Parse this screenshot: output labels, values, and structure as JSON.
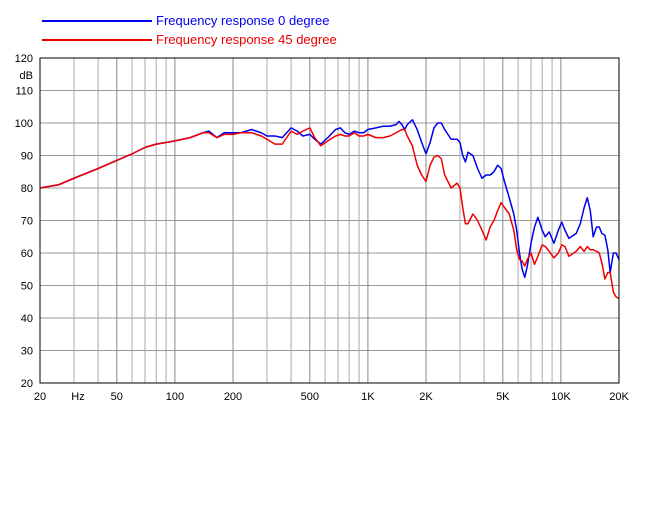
{
  "chart_data": {
    "type": "line",
    "title": "",
    "xlabel": "Hz",
    "ylabel": "dB",
    "x_scale": "log",
    "xlim": [
      20,
      20000
    ],
    "ylim": [
      20,
      120
    ],
    "grid": true,
    "legend_position": "top-left",
    "x_ticks": [
      {
        "value": 20,
        "label": "20"
      },
      {
        "value": 50,
        "label": "50"
      },
      {
        "value": 100,
        "label": "100"
      },
      {
        "value": 200,
        "label": "200"
      },
      {
        "value": 500,
        "label": "500"
      },
      {
        "value": 1000,
        "label": "1K"
      },
      {
        "value": 2000,
        "label": "2K"
      },
      {
        "value": 5000,
        "label": "5K"
      },
      {
        "value": 10000,
        "label": "10K"
      },
      {
        "value": 20000,
        "label": "20K"
      }
    ],
    "y_ticks": [
      120,
      110,
      100,
      90,
      80,
      70,
      60,
      50,
      40,
      30,
      20
    ],
    "series": [
      {
        "name": "Frequency response 0 degree",
        "color": "#0000ee",
        "points": [
          [
            20,
            80
          ],
          [
            25,
            81
          ],
          [
            30,
            83
          ],
          [
            40,
            86
          ],
          [
            50,
            88.5
          ],
          [
            60,
            90.5
          ],
          [
            70,
            92.5
          ],
          [
            80,
            93.5
          ],
          [
            90,
            94
          ],
          [
            100,
            94.5
          ],
          [
            120,
            95.5
          ],
          [
            140,
            97
          ],
          [
            150,
            97.5
          ],
          [
            165,
            95.5
          ],
          [
            180,
            97
          ],
          [
            200,
            97
          ],
          [
            220,
            97
          ],
          [
            250,
            98
          ],
          [
            280,
            97
          ],
          [
            300,
            96
          ],
          [
            330,
            96
          ],
          [
            360,
            95.5
          ],
          [
            400,
            98.5
          ],
          [
            430,
            97.5
          ],
          [
            460,
            96
          ],
          [
            500,
            96.5
          ],
          [
            530,
            95
          ],
          [
            570,
            93.5
          ],
          [
            620,
            95.5
          ],
          [
            680,
            98
          ],
          [
            720,
            98.5
          ],
          [
            760,
            97
          ],
          [
            800,
            96.5
          ],
          [
            850,
            97.5
          ],
          [
            900,
            97
          ],
          [
            950,
            97
          ],
          [
            1000,
            98
          ],
          [
            1100,
            98.5
          ],
          [
            1200,
            99
          ],
          [
            1300,
            99
          ],
          [
            1400,
            99.5
          ],
          [
            1450,
            100.5
          ],
          [
            1500,
            99.5
          ],
          [
            1550,
            98
          ],
          [
            1600,
            99.5
          ],
          [
            1700,
            101
          ],
          [
            1800,
            98
          ],
          [
            1900,
            94
          ],
          [
            2000,
            90.5
          ],
          [
            2100,
            94
          ],
          [
            2200,
            98.5
          ],
          [
            2300,
            100
          ],
          [
            2400,
            100
          ],
          [
            2500,
            98
          ],
          [
            2700,
            95
          ],
          [
            2900,
            95
          ],
          [
            3000,
            94
          ],
          [
            3100,
            90
          ],
          [
            3200,
            88
          ],
          [
            3300,
            91
          ],
          [
            3500,
            90
          ],
          [
            3700,
            86
          ],
          [
            3900,
            83
          ],
          [
            4100,
            84
          ],
          [
            4300,
            84
          ],
          [
            4500,
            85
          ],
          [
            4700,
            87
          ],
          [
            4900,
            86
          ],
          [
            5100,
            82
          ],
          [
            5400,
            77
          ],
          [
            5700,
            72
          ],
          [
            5900,
            67
          ],
          [
            6100,
            60
          ],
          [
            6300,
            55
          ],
          [
            6500,
            52.5
          ],
          [
            6700,
            56
          ],
          [
            7000,
            63
          ],
          [
            7300,
            68
          ],
          [
            7600,
            71
          ],
          [
            8000,
            67
          ],
          [
            8300,
            65
          ],
          [
            8700,
            66.5
          ],
          [
            9200,
            63
          ],
          [
            9700,
            67
          ],
          [
            10100,
            69.5
          ],
          [
            10500,
            67
          ],
          [
            11000,
            64.5
          ],
          [
            12000,
            66
          ],
          [
            12600,
            69
          ],
          [
            13200,
            74
          ],
          [
            13700,
            77
          ],
          [
            14200,
            73
          ],
          [
            14700,
            65
          ],
          [
            15300,
            68
          ],
          [
            15800,
            68
          ],
          [
            16300,
            66
          ],
          [
            16900,
            65.5
          ],
          [
            17500,
            61
          ],
          [
            18000,
            54
          ],
          [
            18700,
            60
          ],
          [
            19300,
            60
          ],
          [
            20000,
            58
          ]
        ]
      },
      {
        "name": "Frequency response 45 degree",
        "color": "#ee0000",
        "points": [
          [
            20,
            80
          ],
          [
            25,
            81
          ],
          [
            30,
            83
          ],
          [
            40,
            86
          ],
          [
            50,
            88.5
          ],
          [
            60,
            90.5
          ],
          [
            70,
            92.5
          ],
          [
            80,
            93.5
          ],
          [
            90,
            94
          ],
          [
            100,
            94.5
          ],
          [
            120,
            95.5
          ],
          [
            140,
            97
          ],
          [
            150,
            97
          ],
          [
            165,
            95.5
          ],
          [
            180,
            96.5
          ],
          [
            200,
            96.5
          ],
          [
            220,
            97
          ],
          [
            250,
            97
          ],
          [
            280,
            96
          ],
          [
            300,
            95
          ],
          [
            330,
            93.5
          ],
          [
            360,
            93.5
          ],
          [
            400,
            97.5
          ],
          [
            430,
            96.5
          ],
          [
            460,
            97.5
          ],
          [
            500,
            98.5
          ],
          [
            530,
            95.5
          ],
          [
            570,
            93
          ],
          [
            620,
            94.5
          ],
          [
            680,
            96
          ],
          [
            720,
            96.5
          ],
          [
            760,
            96
          ],
          [
            800,
            96
          ],
          [
            850,
            97
          ],
          [
            900,
            96
          ],
          [
            950,
            96
          ],
          [
            1000,
            96.5
          ],
          [
            1100,
            95.5
          ],
          [
            1200,
            95.5
          ],
          [
            1300,
            96
          ],
          [
            1400,
            97
          ],
          [
            1450,
            97.5
          ],
          [
            1500,
            98
          ],
          [
            1550,
            98
          ],
          [
            1600,
            96
          ],
          [
            1700,
            93
          ],
          [
            1800,
            87
          ],
          [
            1900,
            84
          ],
          [
            2000,
            82
          ],
          [
            2100,
            87
          ],
          [
            2200,
            89.5
          ],
          [
            2300,
            90
          ],
          [
            2400,
            89
          ],
          [
            2500,
            84
          ],
          [
            2700,
            80
          ],
          [
            2900,
            81.5
          ],
          [
            3000,
            80
          ],
          [
            3100,
            74
          ],
          [
            3200,
            69
          ],
          [
            3300,
            69
          ],
          [
            3500,
            72
          ],
          [
            3700,
            70
          ],
          [
            3900,
            67
          ],
          [
            4100,
            64
          ],
          [
            4300,
            68
          ],
          [
            4500,
            70
          ],
          [
            4700,
            73
          ],
          [
            4900,
            75.5
          ],
          [
            5100,
            74
          ],
          [
            5400,
            72
          ],
          [
            5700,
            67
          ],
          [
            5900,
            61
          ],
          [
            6100,
            58
          ],
          [
            6300,
            57.5
          ],
          [
            6500,
            56
          ],
          [
            6700,
            58
          ],
          [
            7000,
            60
          ],
          [
            7300,
            56.5
          ],
          [
            7600,
            59
          ],
          [
            8000,
            62.5
          ],
          [
            8300,
            62
          ],
          [
            8700,
            60.5
          ],
          [
            9200,
            58.5
          ],
          [
            9700,
            60
          ],
          [
            10100,
            62.5
          ],
          [
            10500,
            62
          ],
          [
            11000,
            59
          ],
          [
            12000,
            60.5
          ],
          [
            12600,
            62
          ],
          [
            13200,
            60.5
          ],
          [
            13700,
            62
          ],
          [
            14200,
            61
          ],
          [
            14700,
            61
          ],
          [
            15300,
            60.5
          ],
          [
            15800,
            60
          ],
          [
            16300,
            57
          ],
          [
            16900,
            52
          ],
          [
            17500,
            54
          ],
          [
            18000,
            54
          ],
          [
            18700,
            48
          ],
          [
            19300,
            46.5
          ],
          [
            20000,
            46
          ]
        ]
      }
    ]
  }
}
